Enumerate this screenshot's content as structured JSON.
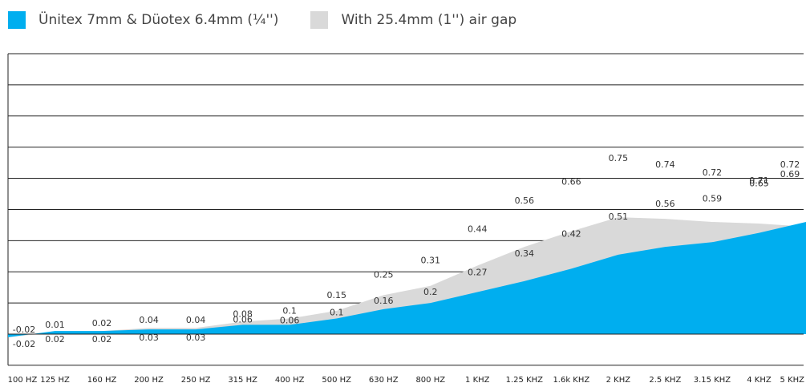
{
  "legend": {
    "items": [
      {
        "label": "Ünitex 7mm & Düotex 6.4mm (¼'')",
        "color": "#00AEEF"
      },
      {
        "label": "With 25.4mm (1'') air gap",
        "color": "#D9D9D9"
      }
    ]
  },
  "chart_data": {
    "type": "area",
    "categories": [
      "100 HZ",
      "125 HZ",
      "160 HZ",
      "200 HZ",
      "250 HZ",
      "315 HZ",
      "400 HZ",
      "500 HZ",
      "630 HZ",
      "800 HZ",
      "1 KHZ",
      "1.25 KHZ",
      "1.6k KHZ",
      "2 KHZ",
      "2.5 KHZ",
      "3.15 KHZ",
      "4 KHZ",
      "5 KHZ"
    ],
    "series": [
      {
        "name": "Ünitex 7mm & Düotex 6.4mm (¼'')",
        "color": "#00AEEF",
        "values": [
          -0.02,
          0.02,
          0.02,
          0.03,
          0.03,
          0.06,
          0.06,
          0.1,
          0.16,
          0.2,
          0.27,
          0.34,
          0.42,
          0.51,
          0.56,
          0.59,
          0.65,
          0.72
        ]
      },
      {
        "name": "With 25.4mm (1'') air gap",
        "color": "#D9D9D9",
        "values": [
          -0.02,
          0.01,
          0.02,
          0.04,
          0.04,
          0.08,
          0.1,
          0.15,
          0.25,
          0.31,
          0.44,
          0.56,
          0.66,
          0.75,
          0.74,
          0.72,
          0.71,
          0.69
        ]
      }
    ],
    "ylim": [
      -0.2,
      1.8
    ],
    "grid": true,
    "legend_position": "top-left"
  }
}
